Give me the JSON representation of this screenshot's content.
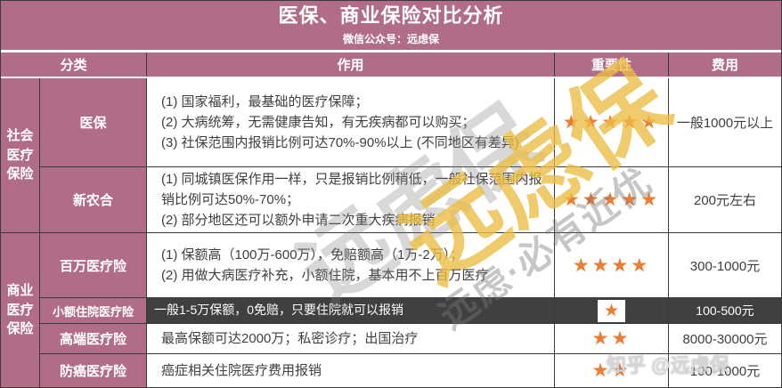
{
  "title": "医保、商业保险对比分析",
  "subtitle": "微信公众号：远虑保",
  "columns": {
    "category": "分类",
    "function": "作用",
    "importance": "重要性",
    "cost": "费用"
  },
  "groups": [
    {
      "name": "社会医疗保险",
      "text": "社会\n医疗\n保险"
    },
    {
      "name": "商业医疗保险",
      "text": "商业\n医疗\n保险"
    }
  ],
  "rows": [
    {
      "label": "医保",
      "function": "(1) 国家福利，最基础的医疗保障；\n(2) 大病统筹，无需健康告知，有无疾病都可以购买；\n(3) 社保范围内报销比例可达70%-90%以上 (不同地区有差异)",
      "stars": 5,
      "stars_text": "★★★★★",
      "cost": "一般1000元以上",
      "highlighted": false
    },
    {
      "label": "新农合",
      "function": "(1) 同城镇医保作用一样，只是报销比例稍低，一般社保范围内报销比例可达50%-70%；\n(2) 部分地区还可以额外申请二次重大疾病报销",
      "stars": 5,
      "stars_text": "★★★★★",
      "cost": "200元左右",
      "highlighted": false
    },
    {
      "label": "百万医疗险",
      "function": "(1) 保额高（100万-600万），免赔额高（1万-2万）；\n(2) 用做大病医疗补充，小额住院，基本用不上百万医疗",
      "stars": 4,
      "stars_text": "★★★★",
      "cost": "300-1000元",
      "highlighted": false
    },
    {
      "label": "小额住院医疗险",
      "function": "一般1-5万保额，0免赔，只要住院就可以报销",
      "stars": 1,
      "stars_text": "★",
      "cost": "100-500元",
      "highlighted": true
    },
    {
      "label": "高端医疗险",
      "function": "最高保额可达2000万；私密诊疗；出国治疗",
      "stars": 2,
      "stars_text": "★★",
      "cost": "8000-30000元",
      "highlighted": false
    },
    {
      "label": "防癌医疗险",
      "function": "癌症相关住院医疗费用报销",
      "stars": 2,
      "stars_text": "★★",
      "cost": "100-1000元",
      "highlighted": false
    }
  ],
  "watermarks": {
    "brand_big": "远虑保",
    "brand_gray": "远虑保",
    "tagline": "远虑·必有近优",
    "zhihu": "知乎 @远虑保"
  },
  "colors": {
    "mauve": "#b16d88",
    "dark_row": "#404040",
    "star_orange": "#ed7d31",
    "border": "#3a3a3a",
    "text": "#3f3f3f",
    "watermark_yellow": "#ecbd42"
  }
}
